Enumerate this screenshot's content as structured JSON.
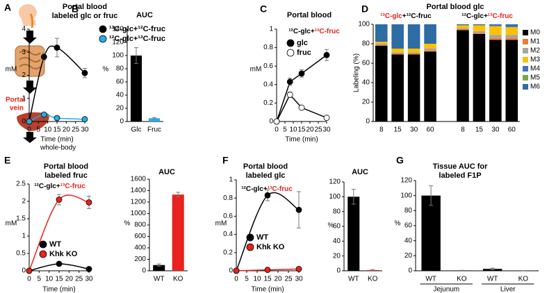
{
  "panel_a": {
    "label": "A",
    "portal": [
      "Portal",
      "vein"
    ],
    "caption": "whole-body"
  },
  "chart_data": [
    {
      "type": "line",
      "label": "B",
      "title": [
        "Portal blood",
        "labeled glc or fruc"
      ],
      "xlabel": "Time (min)",
      "ylabel": "mM",
      "smooth": true,
      "x": [
        0,
        8,
        15,
        30
      ],
      "xlim": [
        0,
        30
      ],
      "xticks": [
        0,
        5,
        10,
        15,
        20,
        25,
        30
      ],
      "ylim": [
        0,
        4
      ],
      "yticks": [
        0,
        1,
        2,
        3,
        4
      ],
      "series": [
        {
          "name": "¹³C-glc+¹²C-fruc",
          "color": "#000000",
          "values": [
            0,
            2.8,
            3.2,
            2.1
          ],
          "errors": [
            0,
            0.15,
            0.4,
            0.2
          ]
        },
        {
          "name": "¹²C-glc+¹³C-fruc",
          "color": "#29abe2",
          "values": [
            0,
            0.3,
            0.15,
            0.1
          ],
          "errors": [
            0,
            0.05,
            0.03,
            0.03
          ]
        }
      ]
    },
    {
      "type": "bar",
      "title": [
        "AUC"
      ],
      "ylabel": "%",
      "categories": [
        "Glc",
        "Fruc"
      ],
      "values": [
        100,
        5
      ],
      "errors": [
        12,
        1
      ],
      "colors": [
        "#000000",
        "#29abe2"
      ],
      "ylim": [
        0,
        140
      ],
      "yticks": [
        0,
        20,
        40,
        60,
        80,
        100,
        120,
        140
      ]
    },
    {
      "type": "line",
      "label": "C",
      "title": [
        "Portal blood"
      ],
      "xlabel": "Time (min)",
      "ylabel": "mM",
      "smooth": false,
      "annotation": [
        {
          "text": "¹²C-glc+",
          "color": "#000000"
        },
        {
          "text": "¹³C-fruc",
          "color": "#e8221c"
        }
      ],
      "x": [
        0,
        8,
        15,
        30
      ],
      "xlim": [
        0,
        30
      ],
      "xticks": [
        0,
        5,
        10,
        15,
        20,
        25,
        30
      ],
      "ylim": [
        0,
        1
      ],
      "yticks": [
        0,
        0.2,
        0.4,
        0.6,
        0.8,
        1
      ],
      "series": [
        {
          "name": "glc",
          "color": "#000000",
          "fill": "#000000",
          "values": [
            0,
            0.43,
            0.52,
            0.72
          ],
          "errors": [
            0,
            0.04,
            0.04,
            0.06
          ]
        },
        {
          "name": "fruc",
          "color": "#000000",
          "fill": "#ffffff",
          "values": [
            0,
            0.29,
            0.15,
            0.04
          ],
          "errors": [
            0,
            0.03,
            0.01,
            0.01
          ]
        }
      ]
    },
    {
      "type": "stacked_bar",
      "label": "D",
      "title": [
        "Portal blood glc"
      ],
      "ylabel": "Labeling (%)",
      "group_labels": [
        [
          {
            "text": "¹³C-glc",
            "color": "#e8221c"
          },
          {
            "text": "+¹²C-fruc",
            "color": "#000000"
          }
        ],
        [
          {
            "text": "¹²C-glc+",
            "color": "#000000"
          },
          {
            "text": "¹³C-fruc",
            "color": "#e8221c"
          }
        ]
      ],
      "categories": [
        "8",
        "15",
        "30",
        "60",
        null,
        "8",
        "15",
        "30",
        "60"
      ],
      "ylim": [
        0,
        100
      ],
      "yticks": [
        0,
        20,
        40,
        60,
        80,
        100
      ],
      "series": [
        {
          "name": "M0",
          "color": "#000000",
          "values": [
            78,
            69,
            69,
            72,
            null,
            94,
            90,
            84,
            84
          ]
        },
        {
          "name": "M1",
          "color": "#ed7d31",
          "values": [
            1,
            1,
            1,
            1,
            null,
            1,
            1,
            2,
            2
          ]
        },
        {
          "name": "M2",
          "color": "#a5a5a5",
          "values": [
            1,
            1,
            1,
            2,
            null,
            1,
            2,
            3,
            3
          ]
        },
        {
          "name": "M3",
          "color": "#ffc000",
          "values": [
            2,
            4,
            4,
            5,
            null,
            3,
            6,
            9,
            8
          ]
        },
        {
          "name": "M4",
          "color": "#4472c4",
          "values": [
            0,
            0,
            0,
            0,
            null,
            0,
            0,
            1,
            1
          ]
        },
        {
          "name": "M5",
          "color": "#70ad47",
          "values": [
            0,
            0,
            0,
            0,
            null,
            0,
            0,
            0,
            0
          ]
        },
        {
          "name": "M6",
          "color": "#2e6ca4",
          "values": [
            18,
            25,
            25,
            20,
            null,
            1,
            1,
            1,
            2
          ]
        }
      ]
    },
    {
      "type": "line",
      "label": "E",
      "title": [
        "Portal blood",
        "labeled  fruc"
      ],
      "xlabel": "Time (min)",
      "ylabel": "mM",
      "smooth": true,
      "annotation": [
        {
          "text": "¹²C-glc+",
          "color": "#000000"
        },
        {
          "text": "¹³C-fruc",
          "color": "#e8221c"
        }
      ],
      "x": [
        0,
        15,
        30
      ],
      "xlim": [
        0,
        30
      ],
      "xticks": [
        0,
        5,
        10,
        15,
        20,
        25,
        30
      ],
      "ylim": [
        0,
        2.5
      ],
      "yticks": [
        0,
        0.5,
        1,
        1.5,
        2,
        2.5
      ],
      "series": [
        {
          "name": "WT",
          "color": "#000000",
          "values": [
            0,
            0.2,
            0.05
          ],
          "errors": [
            0,
            0.02,
            0.02
          ]
        },
        {
          "name": "Khk KO",
          "color": "#e8221c",
          "values": [
            0,
            2.05,
            1.97
          ],
          "errors": [
            0,
            0.15,
            0.18
          ]
        }
      ]
    },
    {
      "type": "bar",
      "title": [
        "AUC"
      ],
      "ylabel": "%",
      "categories": [
        "WT",
        "KO"
      ],
      "values": [
        100,
        1330
      ],
      "errors": [
        20,
        40
      ],
      "colors": [
        "#000000",
        "#e8221c"
      ],
      "ylim": [
        0,
        1600
      ],
      "yticks": [
        0,
        200,
        400,
        600,
        800,
        1000,
        1200,
        1400,
        1600
      ]
    },
    {
      "type": "line",
      "label": "F",
      "title": [
        "Portal blood",
        "labeled  glc"
      ],
      "xlabel": "Time (min)",
      "ylabel": "mM",
      "smooth": true,
      "annotation": [
        {
          "text": "¹²C-glc+",
          "color": "#000000"
        },
        {
          "text": "¹³C-fruc",
          "color": "#e8221c"
        }
      ],
      "x": [
        0,
        15,
        30
      ],
      "xlim": [
        0,
        30
      ],
      "xticks": [
        0,
        5,
        10,
        15,
        20,
        25,
        30
      ],
      "ylim": [
        0,
        1
      ],
      "yticks": [
        0,
        0.2,
        0.4,
        0.6,
        0.8,
        1
      ],
      "series": [
        {
          "name": "WT",
          "color": "#000000",
          "values": [
            0,
            0.83,
            0.67
          ],
          "errors": [
            0,
            0.06,
            0.2
          ]
        },
        {
          "name": "Khk KO",
          "color": "#e8221c",
          "values": [
            0,
            0.01,
            0.02
          ],
          "errors": [
            0,
            0.01,
            0.01
          ]
        }
      ]
    },
    {
      "type": "bar",
      "title": [
        "AUC"
      ],
      "ylabel": "%",
      "categories": [
        "WT",
        "KO"
      ],
      "values": [
        100,
        1
      ],
      "errors": [
        10,
        0.5
      ],
      "colors": [
        "#000000",
        "#e8221c"
      ],
      "ylim": [
        0,
        120
      ],
      "yticks": [
        0,
        20,
        40,
        60,
        80,
        100,
        120
      ]
    },
    {
      "type": "bar",
      "label": "G",
      "title": [
        "Tissue AUC for",
        "labeled  F1P"
      ],
      "ylabel": "%",
      "categories": [
        "WT",
        "KO",
        "WT",
        "KO"
      ],
      "group_labels": [
        "Jejunum",
        "Liver"
      ],
      "values": [
        100,
        0.5,
        2.5,
        0.3
      ],
      "errors": [
        13,
        0.2,
        1,
        0.1
      ],
      "colors": [
        "#000000",
        "#000000",
        "#000000",
        "#000000"
      ],
      "ylim": [
        0,
        120
      ],
      "yticks": [
        0,
        20,
        40,
        60,
        80,
        100,
        120
      ]
    }
  ]
}
